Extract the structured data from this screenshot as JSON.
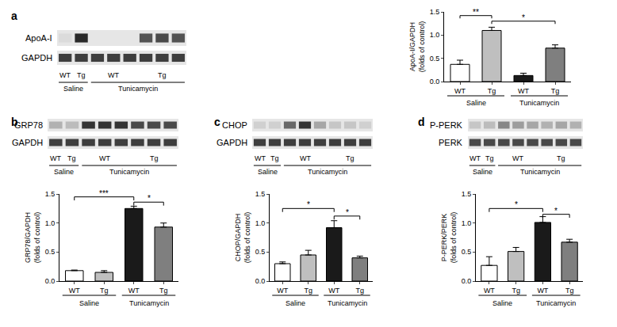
{
  "chart_data": [
    {
      "panel": "a",
      "type": "bar",
      "blot": {
        "rows": [
          {
            "label": "ApoA-I",
            "bands": [
              0.05,
              0.9,
              0.0,
              0.0,
              0.0,
              0.7,
              0.75,
              0.7
            ]
          },
          {
            "label": "GAPDH",
            "bands": [
              0.8,
              0.8,
              0.8,
              0.8,
              0.8,
              0.8,
              0.8,
              0.8
            ]
          }
        ],
        "lane_labels": [
          {
            "text": "WT",
            "lanes": [
              0,
              0
            ]
          },
          {
            "text": "Tg",
            "lanes": [
              1,
              1
            ]
          },
          {
            "text": "WT",
            "lanes": [
              2,
              4
            ]
          },
          {
            "text": "Tg",
            "lanes": [
              5,
              7
            ]
          }
        ],
        "group_labels": [
          {
            "text": "Saline",
            "lanes": [
              0,
              1
            ]
          },
          {
            "text": "Tunicamycin",
            "lanes": [
              2,
              7
            ]
          }
        ]
      },
      "categories": [
        "WT",
        "Tg",
        "WT",
        "Tg"
      ],
      "groups": [
        {
          "text": "Saline",
          "categories": [
            0,
            1
          ]
        },
        {
          "text": "Tunicamycin",
          "categories": [
            2,
            3
          ]
        }
      ],
      "values": [
        0.37,
        1.1,
        0.13,
        0.72
      ],
      "errors": [
        0.09,
        0.07,
        0.05,
        0.07
      ],
      "colors": [
        "#ffffff",
        "#bfbfbf",
        "#1a1a1a",
        "#7f7f7f"
      ],
      "y_label": [
        "ApoA-I/GAPDH",
        "(folds of control)"
      ],
      "ylim": [
        0,
        1.5
      ],
      "yticks": [
        {
          "value": 0,
          "label": "0.0"
        },
        0.5,
        {
          "value": 1,
          "label": "1.0"
        },
        1.5
      ],
      "significance": [
        {
          "from": 0,
          "to": 1,
          "y": 1.42,
          "text": "**"
        },
        {
          "from": 1,
          "to": 3,
          "y": 1.3,
          "text": "*"
        }
      ]
    },
    {
      "panel": "b",
      "type": "bar",
      "blot": {
        "rows": [
          {
            "label": "GRP78",
            "bands": [
              0.25,
              0.2,
              0.85,
              0.85,
              0.85,
              0.75,
              0.75,
              0.75
            ]
          },
          {
            "label": "GAPDH",
            "bands": [
              0.8,
              0.8,
              0.8,
              0.8,
              0.8,
              0.8,
              0.8,
              0.8
            ]
          }
        ],
        "lane_labels": [
          {
            "text": "WT",
            "lanes": [
              0,
              0
            ]
          },
          {
            "text": "Tg",
            "lanes": [
              1,
              1
            ]
          },
          {
            "text": "WT",
            "lanes": [
              2,
              4
            ]
          },
          {
            "text": "Tg",
            "lanes": [
              5,
              7
            ]
          }
        ],
        "group_labels": [
          {
            "text": "Saline",
            "lanes": [
              0,
              1
            ]
          },
          {
            "text": "Tunicamycin",
            "lanes": [
              2,
              7
            ]
          }
        ]
      },
      "categories": [
        "WT",
        "Tg",
        "WT",
        "Tg"
      ],
      "groups": [
        {
          "text": "Saline",
          "categories": [
            0,
            1
          ]
        },
        {
          "text": "Tunicamycin",
          "categories": [
            2,
            3
          ]
        }
      ],
      "values": [
        0.18,
        0.15,
        1.25,
        0.93
      ],
      "errors": [
        0.01,
        0.03,
        0.04,
        0.07
      ],
      "colors": [
        "#ffffff",
        "#bfbfbf",
        "#1a1a1a",
        "#7f7f7f"
      ],
      "y_label": [
        "GRP78/GAPDH",
        "(folds of control)"
      ],
      "ylim": [
        0,
        1.5
      ],
      "yticks": [
        {
          "value": 0,
          "label": "0.0"
        },
        0.5,
        {
          "value": 1,
          "label": "1.0"
        },
        1.5
      ],
      "significance": [
        {
          "from": 0,
          "to": 2,
          "y": 1.45,
          "text": "***"
        },
        {
          "from": 2,
          "to": 3,
          "y": 1.36,
          "text": "*"
        }
      ]
    },
    {
      "panel": "c",
      "type": "bar",
      "blot": {
        "rows": [
          {
            "label": "CHOP",
            "bands": [
              0.1,
              0.1,
              0.6,
              0.85,
              0.3,
              0.15,
              0.15,
              0.1
            ]
          },
          {
            "label": "GAPDH",
            "bands": [
              0.8,
              0.8,
              0.8,
              0.8,
              0.8,
              0.8,
              0.8,
              0.8
            ]
          }
        ],
        "lane_labels": [
          {
            "text": "WT",
            "lanes": [
              0,
              0
            ]
          },
          {
            "text": "Tg",
            "lanes": [
              1,
              1
            ]
          },
          {
            "text": "WT",
            "lanes": [
              2,
              4
            ]
          },
          {
            "text": "Tg",
            "lanes": [
              5,
              7
            ]
          }
        ],
        "group_labels": [
          {
            "text": "Saline",
            "lanes": [
              0,
              1
            ]
          },
          {
            "text": "Tunicamycin",
            "lanes": [
              2,
              7
            ]
          }
        ]
      },
      "categories": [
        "WT",
        "Tg",
        "WT",
        "Tg"
      ],
      "groups": [
        {
          "text": "Saline",
          "categories": [
            0,
            1
          ]
        },
        {
          "text": "Tunicamycin",
          "categories": [
            2,
            3
          ]
        }
      ],
      "values": [
        0.3,
        0.45,
        0.92,
        0.4
      ],
      "errors": [
        0.03,
        0.08,
        0.12,
        0.03
      ],
      "colors": [
        "#ffffff",
        "#bfbfbf",
        "#1a1a1a",
        "#7f7f7f"
      ],
      "y_label": [
        "CHOP/GAPDH",
        "(folds of control)"
      ],
      "ylim": [
        0,
        1.5
      ],
      "yticks": [
        {
          "value": 0,
          "label": "0.0"
        },
        0.5,
        {
          "value": 1,
          "label": "1.0"
        },
        1.5
      ],
      "significance": [
        {
          "from": 0,
          "to": 2,
          "y": 1.25,
          "text": "*"
        },
        {
          "from": 2,
          "to": 3,
          "y": 1.12,
          "text": "*"
        }
      ]
    },
    {
      "panel": "d",
      "type": "bar",
      "blot": {
        "rows": [
          {
            "label": "P-PERK",
            "bands": [
              0.15,
              0.2,
              0.45,
              0.35,
              0.3,
              0.25,
              0.3,
              0.25
            ]
          },
          {
            "label": "PERK",
            "bands": [
              0.75,
              0.75,
              0.75,
              0.75,
              0.75,
              0.75,
              0.75,
              0.75
            ]
          }
        ],
        "lane_labels": [
          {
            "text": "WT",
            "lanes": [
              0,
              0
            ]
          },
          {
            "text": "Tg",
            "lanes": [
              1,
              1
            ]
          },
          {
            "text": "WT",
            "lanes": [
              2,
              4
            ]
          },
          {
            "text": "Tg",
            "lanes": [
              5,
              7
            ]
          }
        ],
        "group_labels": [
          {
            "text": "Saline",
            "lanes": [
              0,
              1
            ]
          },
          {
            "text": "Tunicamycin",
            "lanes": [
              2,
              7
            ]
          }
        ]
      },
      "categories": [
        "WT",
        "Tg",
        "WT",
        "Tg"
      ],
      "groups": [
        {
          "text": "Saline",
          "categories": [
            0,
            1
          ]
        },
        {
          "text": "Tunicamycin",
          "categories": [
            2,
            3
          ]
        }
      ],
      "values": [
        0.27,
        0.51,
        1.01,
        0.67
      ],
      "errors": [
        0.15,
        0.07,
        0.1,
        0.05
      ],
      "colors": [
        "#ffffff",
        "#bfbfbf",
        "#1a1a1a",
        "#7f7f7f"
      ],
      "y_label": [
        "P-PERK/PERK",
        "(folds of control)"
      ],
      "ylim": [
        0,
        1.5
      ],
      "yticks": [
        {
          "value": 0,
          "label": "0.0"
        },
        0.5,
        {
          "value": 1,
          "label": "1.0"
        },
        1.5
      ],
      "significance": [
        {
          "from": 0,
          "to": 2,
          "y": 1.25,
          "text": "*"
        },
        {
          "from": 2,
          "to": 3,
          "y": 1.15,
          "text": "*"
        }
      ]
    }
  ]
}
